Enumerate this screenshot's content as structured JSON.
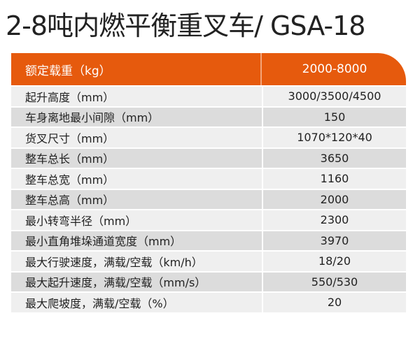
{
  "title": "2-8吨内燃平衡重叉车/ GSA-18",
  "colors": {
    "header": "#e65a0d",
    "row_light": "#efefef",
    "row_dark": "#dcdcdc"
  },
  "header": {
    "label": "额定载重（kg）",
    "value": "2000-8000"
  },
  "rows": [
    {
      "label": "起升高度（mm）",
      "value": "3000/3500/4500"
    },
    {
      "label": "车身离地最小间隙（mm）",
      "value": "150"
    },
    {
      "label": "货叉尺寸（mm）",
      "value": "1070*120*40"
    },
    {
      "label": "整车总长（mm）",
      "value": "3650"
    },
    {
      "label": "整车总宽（mm）",
      "value": "1160"
    },
    {
      "label": "整车总高（mm）",
      "value": "2000"
    },
    {
      "label": "最小转弯半径（mm）",
      "value": "2300"
    },
    {
      "label": "最小直角堆垛通道宽度（mm）",
      "value": "3970"
    },
    {
      "label": "最大行驶速度，满载/空载（km/h）",
      "value": "18/20"
    },
    {
      "label": "最大起升速度，满载/空载（mm/s）",
      "value": "550/530"
    },
    {
      "label": "最大爬坡度，满载/空载（%）",
      "value": "20"
    }
  ]
}
